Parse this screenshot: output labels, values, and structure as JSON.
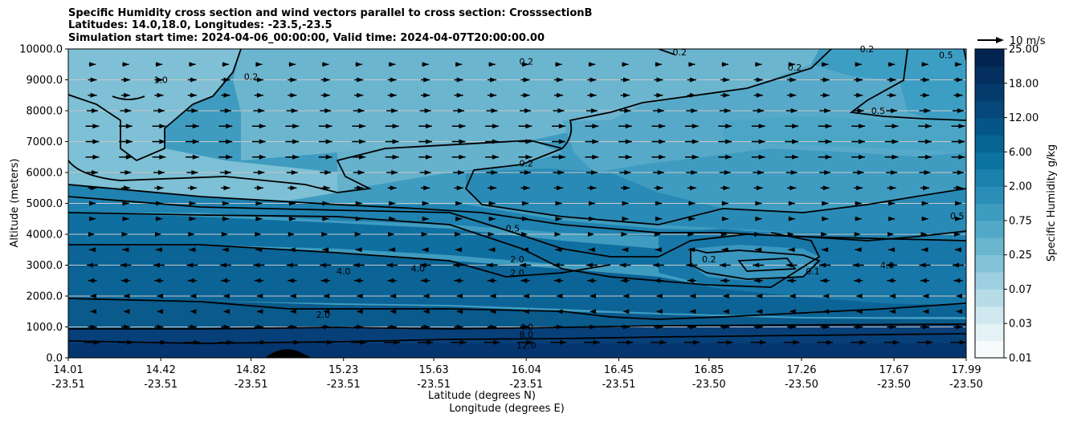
{
  "chart_data": {
    "type": "contourf",
    "title_lines": [
      "Specific Humidity cross section and wind vectors parallel to cross section: CrosssectionB",
      "Latitudes: 14.0,18.0, Longitudes: -23.5,-23.5",
      "Simulation start time: 2024-04-06_00:00:00, Valid time: 2024-04-07T20:00:00.00"
    ],
    "ylabel": "Altitude (meters)",
    "xlabel_lat": "Latitude (degrees N)",
    "xlabel_lon": "Longitude (degrees E)",
    "ylim": [
      0,
      10000
    ],
    "yticks": [
      "0.0",
      "1000.0",
      "2000.0",
      "3000.0",
      "4000.0",
      "5000.0",
      "6000.0",
      "7000.0",
      "8000.0",
      "9000.0",
      "10000.0"
    ],
    "xticks_lat": [
      "14.01",
      "14.42",
      "14.82",
      "15.23",
      "15.63",
      "16.04",
      "16.45",
      "16.85",
      "17.26",
      "17.67",
      "17.99"
    ],
    "xticks_lon": [
      "-23.51",
      "-23.51",
      "-23.51",
      "-23.51",
      "-23.51",
      "-23.51",
      "-23.51",
      "-23.50",
      "-23.50",
      "-23.50",
      "-23.50"
    ],
    "colorbar_label": "Specific Humidity g/kg",
    "colorbar_ticks": [
      "0.01",
      "0.03",
      "0.07",
      "0.25",
      "0.75",
      "2.00",
      "6.00",
      "12.00",
      "18.00",
      "25.00"
    ],
    "quiver_key": "10 m/s",
    "contour_labels": [
      {
        "text": "0.2",
        "lat": 16.04,
        "alt": 9600
      },
      {
        "text": "0.2",
        "lat": 14.82,
        "alt": 9100
      },
      {
        "text": "1.0",
        "lat": 14.42,
        "alt": 9000
      },
      {
        "text": "0.2",
        "lat": 16.04,
        "alt": 6300
      },
      {
        "text": "0.5",
        "lat": 17.9,
        "alt": 9800
      },
      {
        "text": "0.5",
        "lat": 17.6,
        "alt": 8000
      },
      {
        "text": "0.5",
        "lat": 17.95,
        "alt": 4600
      },
      {
        "text": "0.2",
        "lat": 17.23,
        "alt": 9400
      },
      {
        "text": "0.2",
        "lat": 17.55,
        "alt": 10000
      },
      {
        "text": "0.2",
        "lat": 16.72,
        "alt": 9900
      },
      {
        "text": "0.5",
        "lat": 15.98,
        "alt": 4200
      },
      {
        "text": "2.0",
        "lat": 16.0,
        "alt": 3200
      },
      {
        "text": "2.0",
        "lat": 16.0,
        "alt": 2750
      },
      {
        "text": "4.0",
        "lat": 15.56,
        "alt": 2900
      },
      {
        "text": "4.0",
        "lat": 15.23,
        "alt": 2800
      },
      {
        "text": "0.2",
        "lat": 16.85,
        "alt": 3200
      },
      {
        "text": "0.1",
        "lat": 17.31,
        "alt": 2800
      },
      {
        "text": "4.0",
        "lat": 17.64,
        "alt": 3000
      },
      {
        "text": "2.0",
        "lat": 15.14,
        "alt": 1400
      },
      {
        "text": "4.0",
        "lat": 16.04,
        "alt": 1000
      },
      {
        "text": "8.0",
        "lat": 16.04,
        "alt": 750
      },
      {
        "text": "12.0",
        "lat": 16.04,
        "alt": 400
      }
    ],
    "wind_layers": [
      {
        "alt": 9500,
        "u": 3
      },
      {
        "alt": 9000,
        "u": 4
      },
      {
        "alt": 8500,
        "u": 4
      },
      {
        "alt": 8000,
        "u": 5
      },
      {
        "alt": 7500,
        "u": 6
      },
      {
        "alt": 7000,
        "u": 6
      },
      {
        "alt": 6500,
        "u": 6
      },
      {
        "alt": 6000,
        "u": 5
      },
      {
        "alt": 5500,
        "u": 4
      },
      {
        "alt": 5000,
        "u": 3
      },
      {
        "alt": 4500,
        "u": 3
      },
      {
        "alt": 4000,
        "u": 2
      },
      {
        "alt": 3500,
        "u": -3
      },
      {
        "alt": 3000,
        "u": -5
      },
      {
        "alt": 2500,
        "u": -4
      },
      {
        "alt": 2000,
        "u": -2
      },
      {
        "alt": 1500,
        "u": -2
      },
      {
        "alt": 1000,
        "u": 4
      },
      {
        "alt": 500,
        "u": 7
      }
    ]
  }
}
